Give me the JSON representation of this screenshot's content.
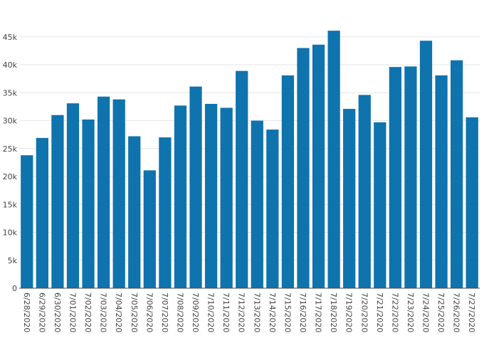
{
  "chart_data": {
    "type": "bar",
    "title": "",
    "xlabel": "",
    "ylabel": "",
    "ylim": [
      0,
      46500
    ],
    "yticks": [
      0,
      5000,
      10000,
      15000,
      20000,
      25000,
      30000,
      35000,
      40000,
      45000
    ],
    "ytick_labels": [
      "0",
      "5k",
      "10k",
      "15k",
      "20k",
      "25k",
      "30k",
      "35k",
      "40k",
      "45k"
    ],
    "grid": true,
    "bar_color": "#0f73ad",
    "categories": [
      "6/28/2020",
      "6/29/2020",
      "6/30/2020",
      "7/01/2020",
      "7/02/2020",
      "7/03/2020",
      "7/04/2020",
      "7/05/2020",
      "7/06/2020",
      "7/07/2020",
      "7/08/2020",
      "7/09/2020",
      "7/10/2020",
      "7/11/2020",
      "7/12/2020",
      "7/13/2020",
      "7/14/2020",
      "7/15/2020",
      "7/16/2020",
      "7/17/2020",
      "7/18/2020",
      "7/19/2020",
      "7/20/2020",
      "7/21/2020",
      "7/22/2020",
      "7/23/2020",
      "7/24/2020",
      "7/25/2020",
      "7/26/2020",
      "7/27/2020"
    ],
    "values": [
      23800,
      26900,
      31000,
      33100,
      30200,
      34300,
      33800,
      27200,
      21100,
      27000,
      32700,
      36100,
      33000,
      32300,
      38900,
      30000,
      28400,
      38100,
      43000,
      43600,
      46100,
      32100,
      34600,
      29700,
      39600,
      39700,
      44300,
      38100,
      40800,
      30600
    ]
  }
}
